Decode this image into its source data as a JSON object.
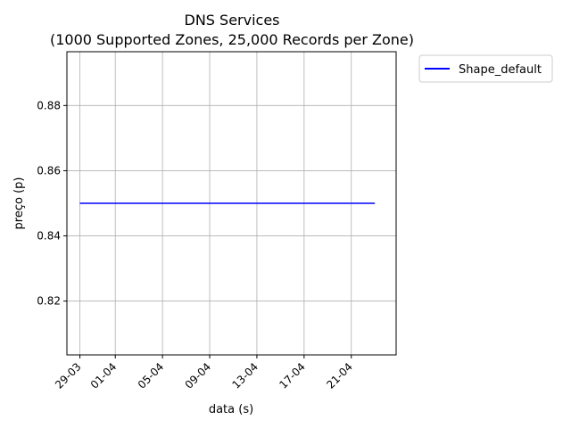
{
  "chart_data": {
    "type": "line",
    "title": "DNS Services",
    "subtitle": "(1000 Supported Zones, 25,000 Records per Zone)",
    "xlabel": "data (s)",
    "ylabel": "preço (p)",
    "x_ticks": [
      "29-03",
      "01-04",
      "05-04",
      "09-04",
      "13-04",
      "17-04",
      "21-04"
    ],
    "x_tick_dates": [
      "2025-03-29",
      "2025-04-01",
      "2025-04-05",
      "2025-04-09",
      "2025-04-13",
      "2025-04-17",
      "2025-04-21"
    ],
    "xlim": [
      "2025-03-27.9",
      "2025-04-24.8"
    ],
    "y_ticks": [
      0.82,
      0.84,
      0.86,
      0.88
    ],
    "ylim": [
      0.8035,
      0.8965
    ],
    "grid": true,
    "legend_position": "outside top-right",
    "series": [
      {
        "name": "Shape_default",
        "color": "#0000ff",
        "x": [
          "2025-03-29",
          "2025-04-23"
        ],
        "y": [
          0.85,
          0.85
        ]
      }
    ]
  }
}
